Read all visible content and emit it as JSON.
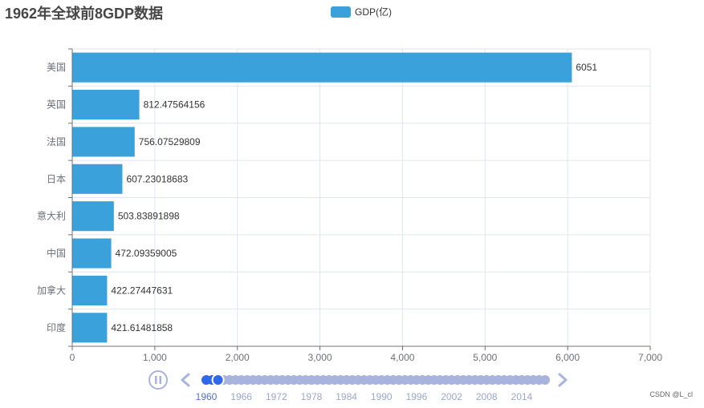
{
  "chart_data": {
    "type": "bar",
    "orientation": "horizontal",
    "title": "1962年全球前8GDP数据",
    "categories": [
      "美国",
      "英国",
      "法国",
      "日本",
      "意大利",
      "中国",
      "加拿大",
      "印度"
    ],
    "series": [
      {
        "name": "GDP(亿)",
        "color": "#3aa1da",
        "values": [
          6051,
          812.47564156,
          756.07529809,
          607.23018683,
          503.83891898,
          472.09359005,
          422.27447631,
          421.61481858
        ],
        "value_labels": [
          "6051",
          "812.47564156",
          "756.07529809",
          "607.23018683",
          "503.83891898",
          "472.09359005",
          "422.27447631",
          "421.61481858"
        ]
      }
    ],
    "xlim": [
      0,
      7000
    ],
    "xticks": [
      0,
      1000,
      2000,
      3000,
      4000,
      5000,
      6000,
      7000
    ],
    "xtick_labels": [
      "0",
      "1,000",
      "2,000",
      "3,000",
      "4,000",
      "5,000",
      "6,000",
      "7,000"
    ],
    "xlabel": "",
    "ylabel": "",
    "grid": true,
    "legend_position": "top-center"
  },
  "timeline": {
    "start_year": 1960,
    "end_year": 2018,
    "current_year": 1962,
    "labels": [
      "1960",
      "1966",
      "1972",
      "1978",
      "1984",
      "1990",
      "1996",
      "2002",
      "2008",
      "2014"
    ],
    "active_label": "1960",
    "play_state": "playing",
    "progress_color": "#2f68e8",
    "inactive_color": "#a8b4dc"
  },
  "watermark": "CSDN @L_cl"
}
